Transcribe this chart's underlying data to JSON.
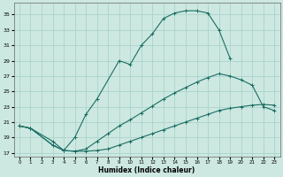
{
  "xlabel": "Humidex (Indice chaleur)",
  "bg_color": "#cce8e0",
  "grid_color": "#aad4cc",
  "line_color": "#1a6e64",
  "xlim": [
    -0.5,
    23.5
  ],
  "ylim": [
    16.5,
    36.5
  ],
  "yticks": [
    17,
    19,
    21,
    23,
    25,
    27,
    29,
    31,
    33,
    35
  ],
  "xticks": [
    0,
    1,
    2,
    3,
    4,
    5,
    6,
    7,
    8,
    9,
    10,
    11,
    12,
    13,
    14,
    15,
    16,
    17,
    18,
    19,
    20,
    21,
    22,
    23
  ],
  "curve_top_x": [
    0,
    1,
    3,
    4,
    5,
    6,
    7,
    9,
    10,
    11,
    12,
    13,
    14,
    15,
    16,
    17,
    18,
    19
  ],
  "curve_top_y": [
    20.5,
    20.2,
    18.5,
    17.3,
    19.0,
    22.0,
    24.0,
    29.0,
    28.5,
    31.0,
    32.5,
    34.5,
    35.2,
    35.5,
    35.5,
    35.2,
    33.0,
    29.3
  ],
  "curve_mid_x": [
    0,
    1,
    3,
    4,
    5,
    6,
    7,
    8,
    9,
    10,
    11,
    12,
    13,
    14,
    15,
    16,
    17,
    18,
    19,
    20,
    21,
    22,
    23
  ],
  "curve_mid_y": [
    20.5,
    20.2,
    18.0,
    17.3,
    17.2,
    17.5,
    18.5,
    19.5,
    20.5,
    21.3,
    22.2,
    23.1,
    24.0,
    24.8,
    25.5,
    26.2,
    26.8,
    27.3,
    27.0,
    26.5,
    25.8,
    23.0,
    22.5
  ],
  "curve_bot_x": [
    0,
    1,
    3,
    4,
    5,
    6,
    7,
    8,
    9,
    10,
    11,
    12,
    13,
    14,
    15,
    16,
    17,
    18,
    19,
    20,
    21,
    22,
    23
  ],
  "curve_bot_y": [
    20.5,
    20.2,
    18.0,
    17.3,
    17.2,
    17.2,
    17.3,
    17.5,
    18.0,
    18.5,
    19.0,
    19.5,
    20.0,
    20.5,
    21.0,
    21.5,
    22.0,
    22.5,
    22.8,
    23.0,
    23.2,
    23.3,
    23.2
  ]
}
